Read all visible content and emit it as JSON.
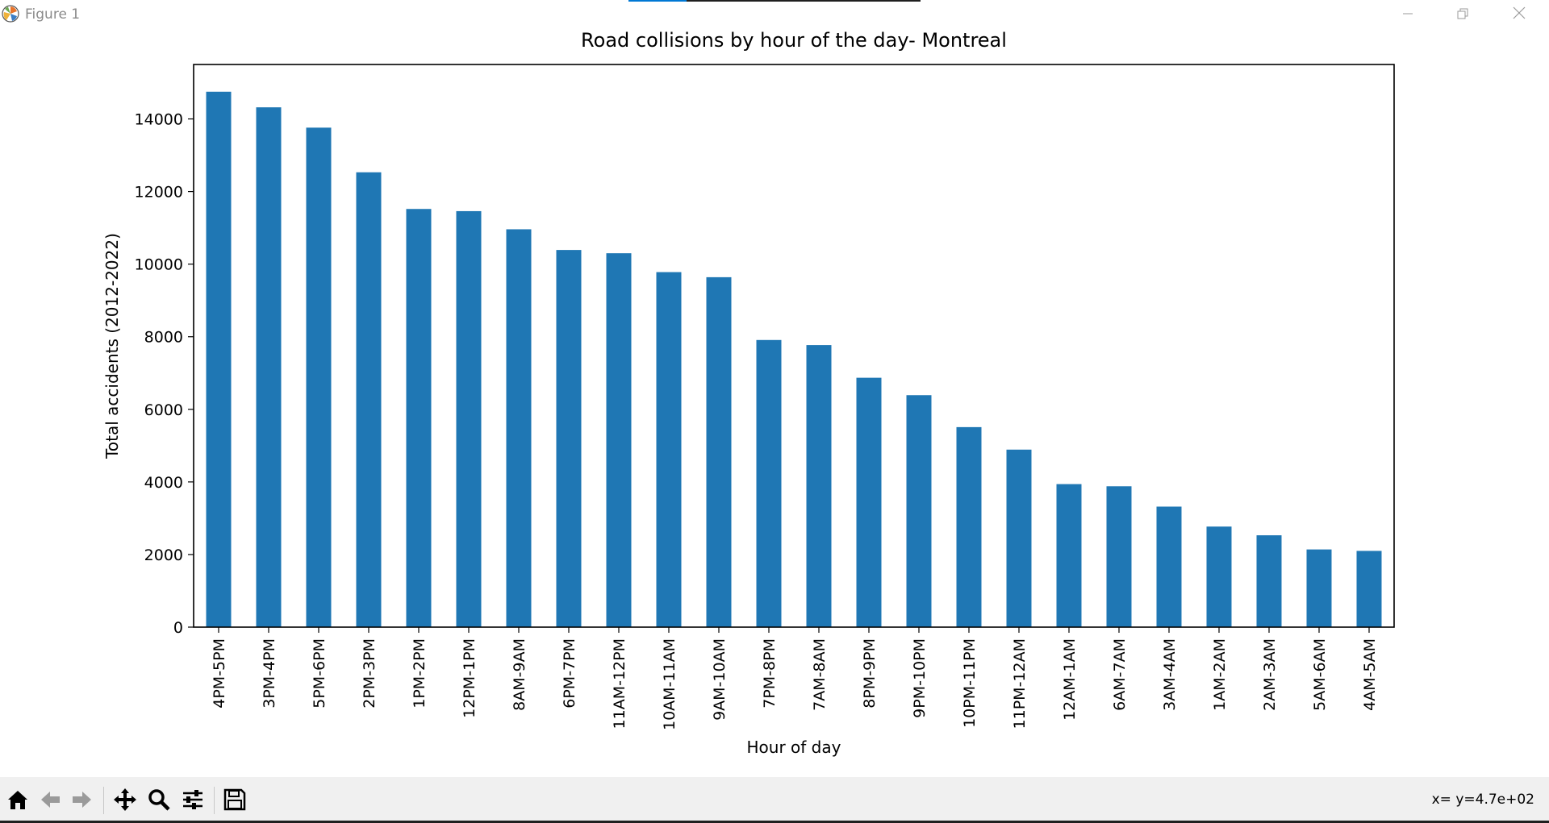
{
  "window": {
    "title": "Figure 1",
    "minimize_icon": "minimize-icon",
    "restore_icon": "restore-icon",
    "close_icon": "close-icon"
  },
  "toolbar": {
    "tools": [
      "home-icon",
      "back-arrow-icon",
      "forward-arrow-icon",
      "pan-move-icon",
      "zoom-magnifier-icon",
      "configure-subplots-icon",
      "save-floppy-icon"
    ],
    "coord_readout": "x= y=4.7e+02"
  },
  "chart_data": {
    "type": "bar",
    "title": "Road collisions by hour of the day- Montreal",
    "xlabel": "Hour of day",
    "ylabel": "Total accidents (2012-2022)",
    "ylim": [
      0,
      15500
    ],
    "yticks": [
      0,
      2000,
      4000,
      6000,
      8000,
      10000,
      12000,
      14000
    ],
    "bar_color": "#1f77b4",
    "grid": false,
    "categories": [
      "4PM-5PM",
      "3PM-4PM",
      "5PM-6PM",
      "2PM-3PM",
      "1PM-2PM",
      "12PM-1PM",
      "8AM-9AM",
      "6PM-7PM",
      "11AM-12PM",
      "10AM-11AM",
      "9AM-10AM",
      "7PM-8PM",
      "7AM-8AM",
      "8PM-9PM",
      "9PM-10PM",
      "10PM-11PM",
      "11PM-12AM",
      "12AM-1AM",
      "6AM-7AM",
      "3AM-4AM",
      "1AM-2AM",
      "2AM-3AM",
      "5AM-6AM",
      "4AM-5AM"
    ],
    "values": [
      14750,
      14320,
      13760,
      12530,
      11520,
      11460,
      10960,
      10390,
      10300,
      9780,
      9640,
      7910,
      7770,
      6870,
      6390,
      5510,
      4890,
      3940,
      3880,
      3320,
      2770,
      2530,
      2140,
      2100
    ]
  }
}
